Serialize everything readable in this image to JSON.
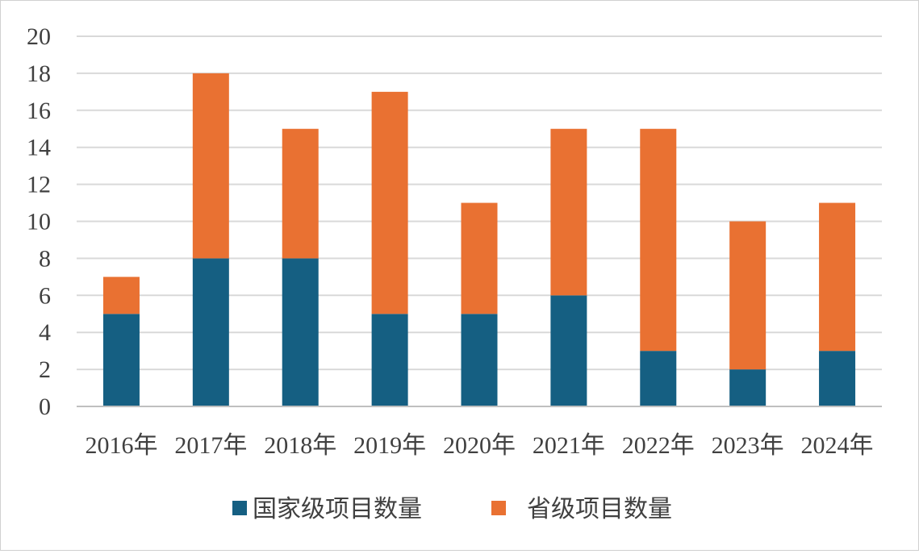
{
  "colors": {
    "national": "#155f82",
    "provincial": "#e97132",
    "grid": "#d9d9d9",
    "axis": "#bfbfbf",
    "text": "#404040"
  },
  "chart_data": {
    "type": "bar",
    "stacked": true,
    "categories": [
      "2016年",
      "2017年",
      "2018年",
      "2019年",
      "2020年",
      "2021年",
      "2022年",
      "2023年",
      "2024年"
    ],
    "series": [
      {
        "name": "国家级项目数量",
        "values": [
          5,
          8,
          8,
          5,
          5,
          6,
          3,
          2,
          3
        ]
      },
      {
        "name": "省级项目数量",
        "values": [
          2,
          10,
          7,
          12,
          6,
          9,
          12,
          8,
          8
        ]
      }
    ],
    "ylim": [
      0,
      20
    ],
    "yticks": [
      0,
      2,
      4,
      6,
      8,
      10,
      12,
      14,
      16,
      18,
      20
    ],
    "grid": true,
    "legend": "bottom"
  }
}
